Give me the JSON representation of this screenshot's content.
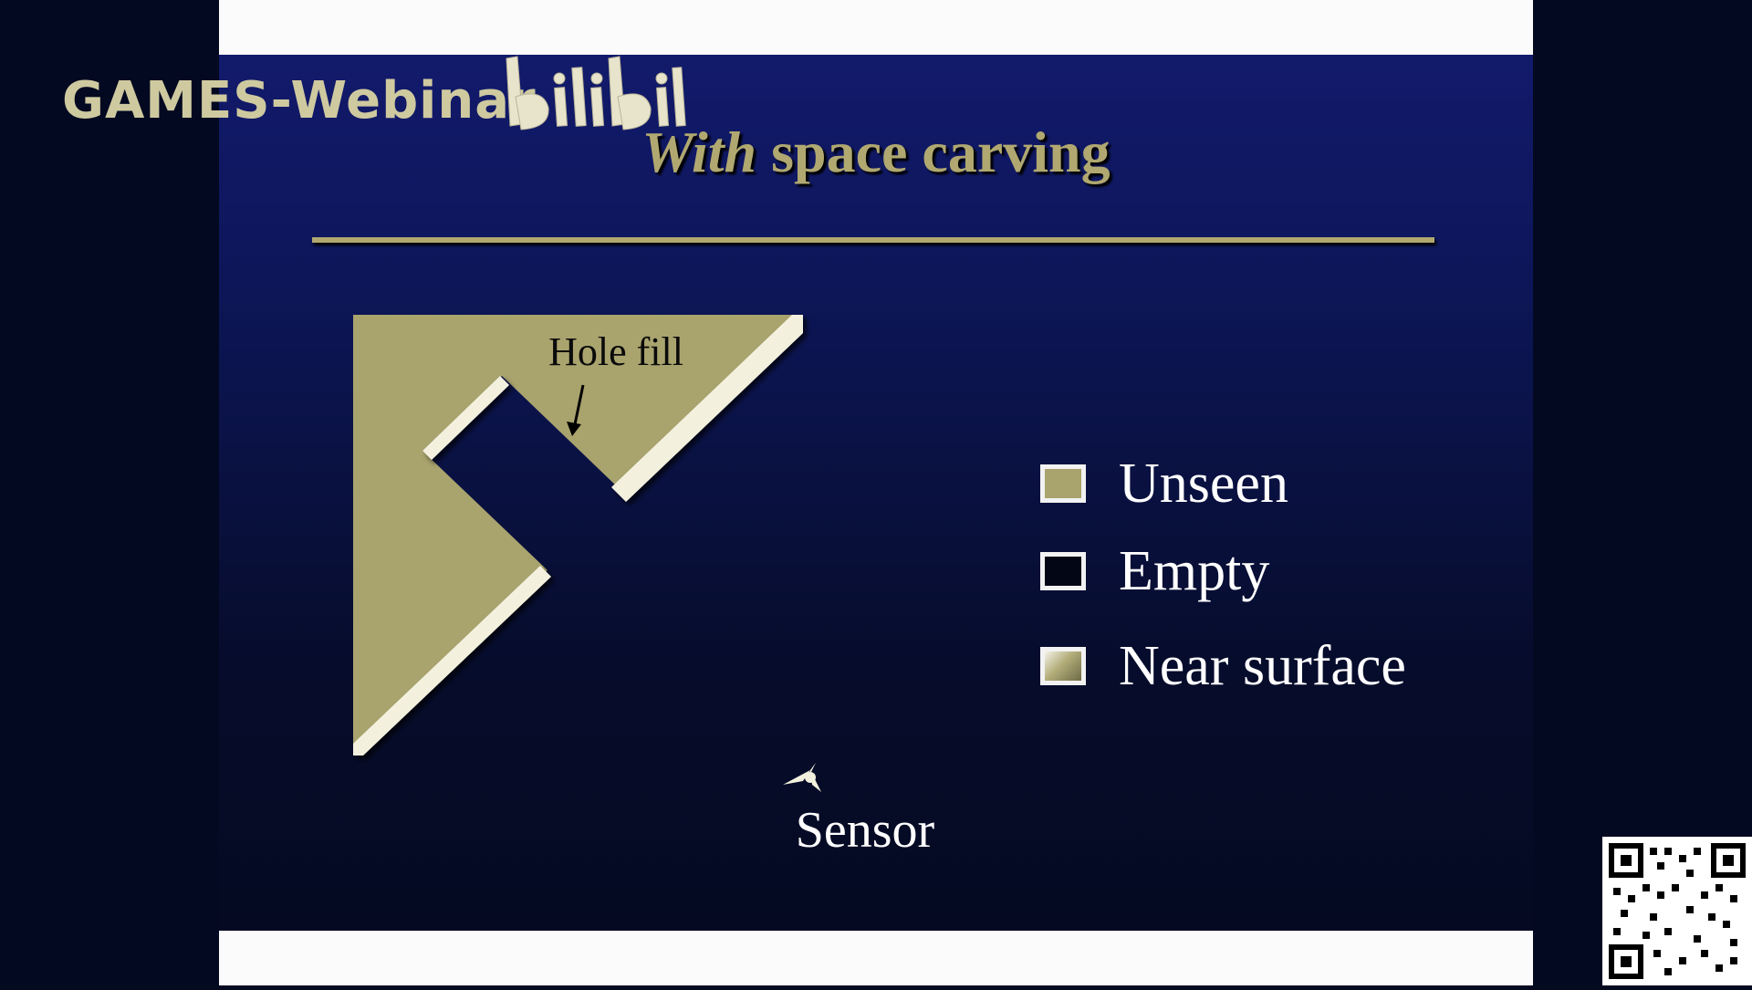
{
  "slide": {
    "title_italic": "With",
    "title_rest": " space carving"
  },
  "diagram": {
    "hole_fill_label": "Hole fill",
    "sensor_label": "Sensor"
  },
  "legend": {
    "items": [
      {
        "label": "Unseen",
        "color": "#a9a36e"
      },
      {
        "label": "Empty",
        "color": "#020615"
      },
      {
        "label": "Near surface",
        "color": "#b3ad7a"
      }
    ]
  },
  "watermark": {
    "text": "GAMES-Webinar",
    "logo": "bilibili"
  },
  "colors": {
    "accent": "#b0a870",
    "background_top": "#121a6b",
    "background_bottom": "#050a22"
  }
}
